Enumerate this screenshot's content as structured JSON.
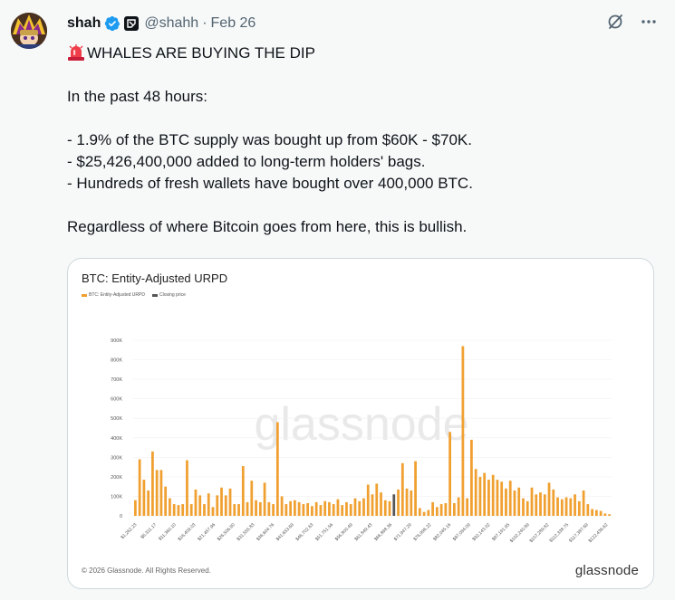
{
  "author": {
    "name": "shah",
    "handle": "@shahh",
    "separator": "·",
    "date": "Feb 26"
  },
  "icons": {
    "avatar": "avatar",
    "verified": "verified-badge-icon",
    "affiliate": "affiliate-badge-icon",
    "grok": "grok-icon",
    "more": "more-icon",
    "siren": "siren-emoji-icon"
  },
  "colors": {
    "verified": "#1d9bf0",
    "bar": "#f0a030",
    "highlight_bar": "#555555"
  },
  "tweet": {
    "line1": "WHALES ARE BUYING THE DIP",
    "line2": "In the past 48 hours:",
    "line3": "- 1.9% of the BTC supply was bought up from $60K - $70K.",
    "line4": "- $25,426,400,000 added to long-term holders' bags.",
    "line5": "- Hundreds of fresh wallets have bought over 400,000 BTC.",
    "line6": "Regardless of where Bitcoin goes from here, this is bullish."
  },
  "media": {
    "watermark": "glassnode",
    "copyright": "© 2026 Glassnode. All Rights Reserved.",
    "brand": "glassnode"
  },
  "chart_data": {
    "type": "bar",
    "title": "BTC: Entity-Adjusted URPD",
    "legend": [
      {
        "label": "BTC: Entity-Adjusted URPD",
        "color": "#f0a030"
      },
      {
        "label": "Closing price",
        "color": "#555555"
      }
    ],
    "ylim": [
      0,
      900000
    ],
    "y_ticks": [
      0,
      100000,
      200000,
      300000,
      400000,
      500000,
      600000,
      700000,
      800000,
      900000
    ],
    "y_tick_labels": [
      "0",
      "100K",
      "200K",
      "300K",
      "400K",
      "500K",
      "600K",
      "700K",
      "800K",
      "900K"
    ],
    "x_tick_labels": [
      "$1,262.23",
      "$6,311.17",
      "$11,360.10",
      "$16,409.03",
      "$21,457.96",
      "$26,506.90",
      "$31,555.83",
      "$36,604.76",
      "$41,653.69",
      "$46,702.63",
      "$51,751.56",
      "$56,800.49",
      "$61,849.43",
      "$66,898.36",
      "$71,947.29",
      "$76,996.22",
      "$82,045.16",
      "$87,094.09",
      "$92,143.02",
      "$97,191.95",
      "$102,240.89",
      "$107,289.82",
      "$112,338.75",
      "$117,387.69",
      "$122,436.62"
    ],
    "highlight_index": 60,
    "values": [
      80000,
      290000,
      185000,
      130000,
      330000,
      235000,
      235000,
      150000,
      90000,
      60000,
      55000,
      60000,
      285000,
      60000,
      135000,
      105000,
      60000,
      115000,
      45000,
      105000,
      145000,
      105000,
      140000,
      60000,
      60000,
      255000,
      70000,
      180000,
      80000,
      70000,
      170000,
      70000,
      60000,
      480000,
      100000,
      60000,
      75000,
      80000,
      70000,
      60000,
      65000,
      50000,
      70000,
      55000,
      75000,
      70000,
      60000,
      85000,
      55000,
      70000,
      60000,
      90000,
      75000,
      90000,
      160000,
      110000,
      165000,
      120000,
      80000,
      75000,
      110000,
      135000,
      270000,
      140000,
      130000,
      280000,
      40000,
      20000,
      30000,
      70000,
      45000,
      60000,
      65000,
      430000,
      65000,
      95000,
      870000,
      90000,
      390000,
      240000,
      200000,
      220000,
      185000,
      210000,
      185000,
      175000,
      140000,
      180000,
      130000,
      145000,
      90000,
      75000,
      145000,
      110000,
      120000,
      110000,
      170000,
      135000,
      95000,
      85000,
      95000,
      90000,
      110000,
      75000,
      130000,
      60000,
      35000,
      30000,
      25000,
      12000,
      8000
    ]
  }
}
